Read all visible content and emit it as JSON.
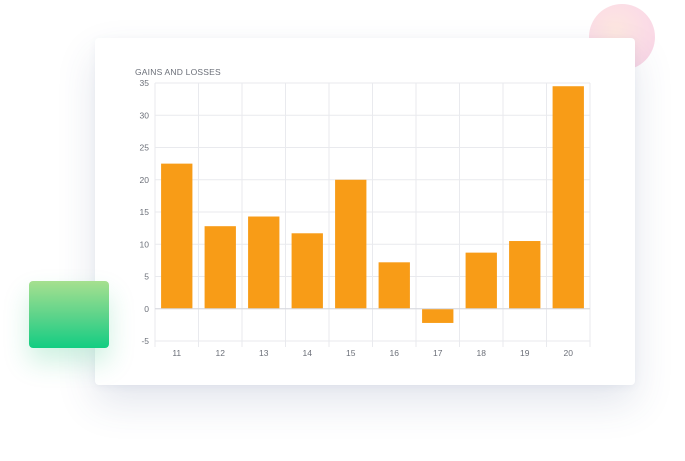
{
  "chart_data": {
    "type": "bar",
    "title": "GAINS AND LOSSES",
    "categories": [
      "11",
      "12",
      "13",
      "14",
      "15",
      "16",
      "17",
      "18",
      "19",
      "20"
    ],
    "values": [
      22.5,
      12.8,
      14.3,
      11.7,
      20.0,
      7.2,
      -2.2,
      8.7,
      10.5,
      34.5
    ],
    "ylim": [
      -5,
      35
    ],
    "yticks": [
      35,
      30,
      25,
      20,
      15,
      10,
      5,
      0,
      -5
    ],
    "grid": true,
    "bar_color": "#f89c17",
    "legend": "none"
  },
  "colors": {
    "bar": "#f89c17",
    "grid": "#e9eaee",
    "card": "#ffffff",
    "accent_green": "#12cd82",
    "accent_pink": "#f8d3e6"
  }
}
